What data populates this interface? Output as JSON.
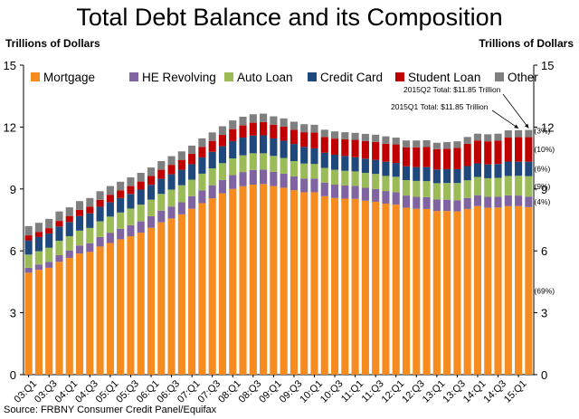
{
  "title": "Total Debt Balance and its Composition",
  "unit_left": "Trillions of Dollars",
  "unit_right": "Trillions of Dollars",
  "source": "Source: FRBNY Consumer Credit Panel/Equifax",
  "chart_data": {
    "type": "bar",
    "stacked": true,
    "title": "Total Debt Balance and its Composition",
    "ylabel": "Trillions of Dollars",
    "ylim": [
      0,
      15
    ],
    "yticks": [
      0,
      3,
      6,
      9,
      12,
      15
    ],
    "grid": false,
    "legend_position": "top",
    "categories": [
      "03:Q1",
      "03:Q2",
      "03:Q3",
      "03:Q4",
      "04:Q1",
      "04:Q2",
      "04:Q3",
      "04:Q4",
      "05:Q1",
      "05:Q2",
      "05:Q3",
      "05:Q4",
      "06:Q1",
      "06:Q2",
      "06:Q3",
      "06:Q4",
      "07:Q1",
      "07:Q2",
      "07:Q3",
      "07:Q4",
      "08:Q1",
      "08:Q2",
      "08:Q3",
      "08:Q4",
      "09:Q1",
      "09:Q2",
      "09:Q3",
      "09:Q4",
      "10:Q1",
      "10:Q2",
      "10:Q3",
      "10:Q4",
      "11:Q1",
      "11:Q2",
      "11:Q3",
      "11:Q4",
      "12:Q1",
      "12:Q2",
      "12:Q3",
      "12:Q4",
      "13:Q1",
      "13:Q2",
      "13:Q3",
      "13:Q4",
      "14:Q1",
      "14:Q2",
      "14:Q3",
      "14:Q4",
      "15:Q1",
      "15:Q2"
    ],
    "tick_labels": [
      "03:Q1",
      "03:Q3",
      "04:Q1",
      "04:Q3",
      "05:Q1",
      "05:Q3",
      "06:Q1",
      "06:Q3",
      "07:Q1",
      "07:Q3",
      "08:Q1",
      "08:Q3",
      "09:Q1",
      "09:Q3",
      "10:Q1",
      "10:Q3",
      "11:Q1",
      "11:Q3",
      "12:Q1",
      "12:Q3",
      "13:Q1",
      "13:Q3",
      "14:Q1",
      "14:Q3",
      "15:Q1"
    ],
    "series": [
      {
        "name": "Mortgage",
        "color": "#F68B1F",
        "values": [
          4.94,
          5.08,
          5.18,
          5.47,
          5.66,
          5.87,
          5.95,
          6.21,
          6.38,
          6.56,
          6.71,
          6.88,
          7.12,
          7.38,
          7.57,
          7.77,
          8.04,
          8.31,
          8.55,
          8.79,
          9.0,
          9.13,
          9.21,
          9.24,
          9.14,
          9.06,
          8.94,
          8.84,
          8.84,
          8.65,
          8.56,
          8.53,
          8.52,
          8.43,
          8.38,
          8.29,
          8.24,
          8.09,
          8.04,
          8.03,
          7.93,
          7.93,
          7.91,
          8.03,
          8.17,
          8.09,
          8.1,
          8.17,
          8.17,
          8.12
        ]
      },
      {
        "name": "HE Revolving",
        "color": "#8064A2",
        "values": [
          0.24,
          0.26,
          0.29,
          0.32,
          0.35,
          0.39,
          0.42,
          0.46,
          0.5,
          0.51,
          0.53,
          0.55,
          0.56,
          0.57,
          0.58,
          0.59,
          0.61,
          0.62,
          0.63,
          0.65,
          0.67,
          0.69,
          0.71,
          0.7,
          0.69,
          0.68,
          0.67,
          0.66,
          0.66,
          0.66,
          0.65,
          0.64,
          0.63,
          0.63,
          0.62,
          0.61,
          0.6,
          0.59,
          0.58,
          0.57,
          0.56,
          0.55,
          0.54,
          0.53,
          0.53,
          0.53,
          0.52,
          0.52,
          0.51,
          0.51
        ]
      },
      {
        "name": "Auto Loan",
        "color": "#9BBB59",
        "values": [
          0.64,
          0.64,
          0.68,
          0.7,
          0.7,
          0.72,
          0.74,
          0.76,
          0.78,
          0.79,
          0.81,
          0.81,
          0.8,
          0.81,
          0.82,
          0.82,
          0.8,
          0.81,
          0.82,
          0.81,
          0.81,
          0.81,
          0.81,
          0.79,
          0.77,
          0.76,
          0.74,
          0.73,
          0.71,
          0.71,
          0.72,
          0.71,
          0.7,
          0.72,
          0.73,
          0.73,
          0.75,
          0.75,
          0.77,
          0.78,
          0.79,
          0.81,
          0.84,
          0.86,
          0.88,
          0.9,
          0.92,
          0.94,
          0.96,
          0.99
        ]
      },
      {
        "name": "Credit Card",
        "color": "#1F497D",
        "values": [
          0.69,
          0.69,
          0.69,
          0.69,
          0.69,
          0.71,
          0.71,
          0.71,
          0.7,
          0.7,
          0.71,
          0.73,
          0.72,
          0.73,
          0.74,
          0.75,
          0.75,
          0.79,
          0.8,
          0.82,
          0.84,
          0.86,
          0.86,
          0.87,
          0.85,
          0.84,
          0.83,
          0.81,
          0.76,
          0.74,
          0.73,
          0.72,
          0.69,
          0.69,
          0.68,
          0.69,
          0.67,
          0.67,
          0.67,
          0.68,
          0.66,
          0.67,
          0.67,
          0.69,
          0.66,
          0.67,
          0.67,
          0.7,
          0.68,
          0.7
        ]
      },
      {
        "name": "Student Loan",
        "color": "#C00000",
        "values": [
          0.24,
          0.25,
          0.26,
          0.27,
          0.29,
          0.3,
          0.32,
          0.33,
          0.36,
          0.37,
          0.38,
          0.39,
          0.43,
          0.44,
          0.46,
          0.48,
          0.5,
          0.51,
          0.53,
          0.55,
          0.58,
          0.59,
          0.62,
          0.64,
          0.66,
          0.68,
          0.69,
          0.71,
          0.76,
          0.76,
          0.78,
          0.81,
          0.84,
          0.85,
          0.87,
          0.87,
          0.9,
          0.91,
          0.96,
          0.97,
          0.99,
          0.99,
          1.03,
          1.08,
          1.11,
          1.12,
          1.13,
          1.16,
          1.19,
          1.19
        ]
      },
      {
        "name": "Other",
        "color": "#7F7F7F",
        "values": [
          0.45,
          0.44,
          0.45,
          0.46,
          0.42,
          0.42,
          0.42,
          0.42,
          0.42,
          0.42,
          0.42,
          0.42,
          0.41,
          0.42,
          0.42,
          0.41,
          0.4,
          0.41,
          0.41,
          0.42,
          0.42,
          0.42,
          0.41,
          0.41,
          0.41,
          0.4,
          0.39,
          0.39,
          0.38,
          0.35,
          0.35,
          0.34,
          0.34,
          0.35,
          0.35,
          0.36,
          0.33,
          0.34,
          0.33,
          0.33,
          0.31,
          0.32,
          0.32,
          0.33,
          0.33,
          0.34,
          0.34,
          0.35,
          0.34,
          0.35
        ]
      }
    ],
    "composition_labels": [
      {
        "series": "Other",
        "text": "(3%)"
      },
      {
        "series": "Student Loan",
        "text": "(10%)"
      },
      {
        "series": "Credit Card",
        "text": "(6%)"
      },
      {
        "series": "Auto Loan",
        "text": "(9%)"
      },
      {
        "series": "HE Revolving",
        "text": "(4%)"
      },
      {
        "series": "Mortgage",
        "text": "(69%)"
      }
    ],
    "annotations": [
      {
        "text": "2015Q2 Total: $11.85 Trillion",
        "category": "15:Q2"
      },
      {
        "text": "2015Q1 Total: $11.85 Trillion",
        "category": "15:Q1"
      }
    ]
  }
}
